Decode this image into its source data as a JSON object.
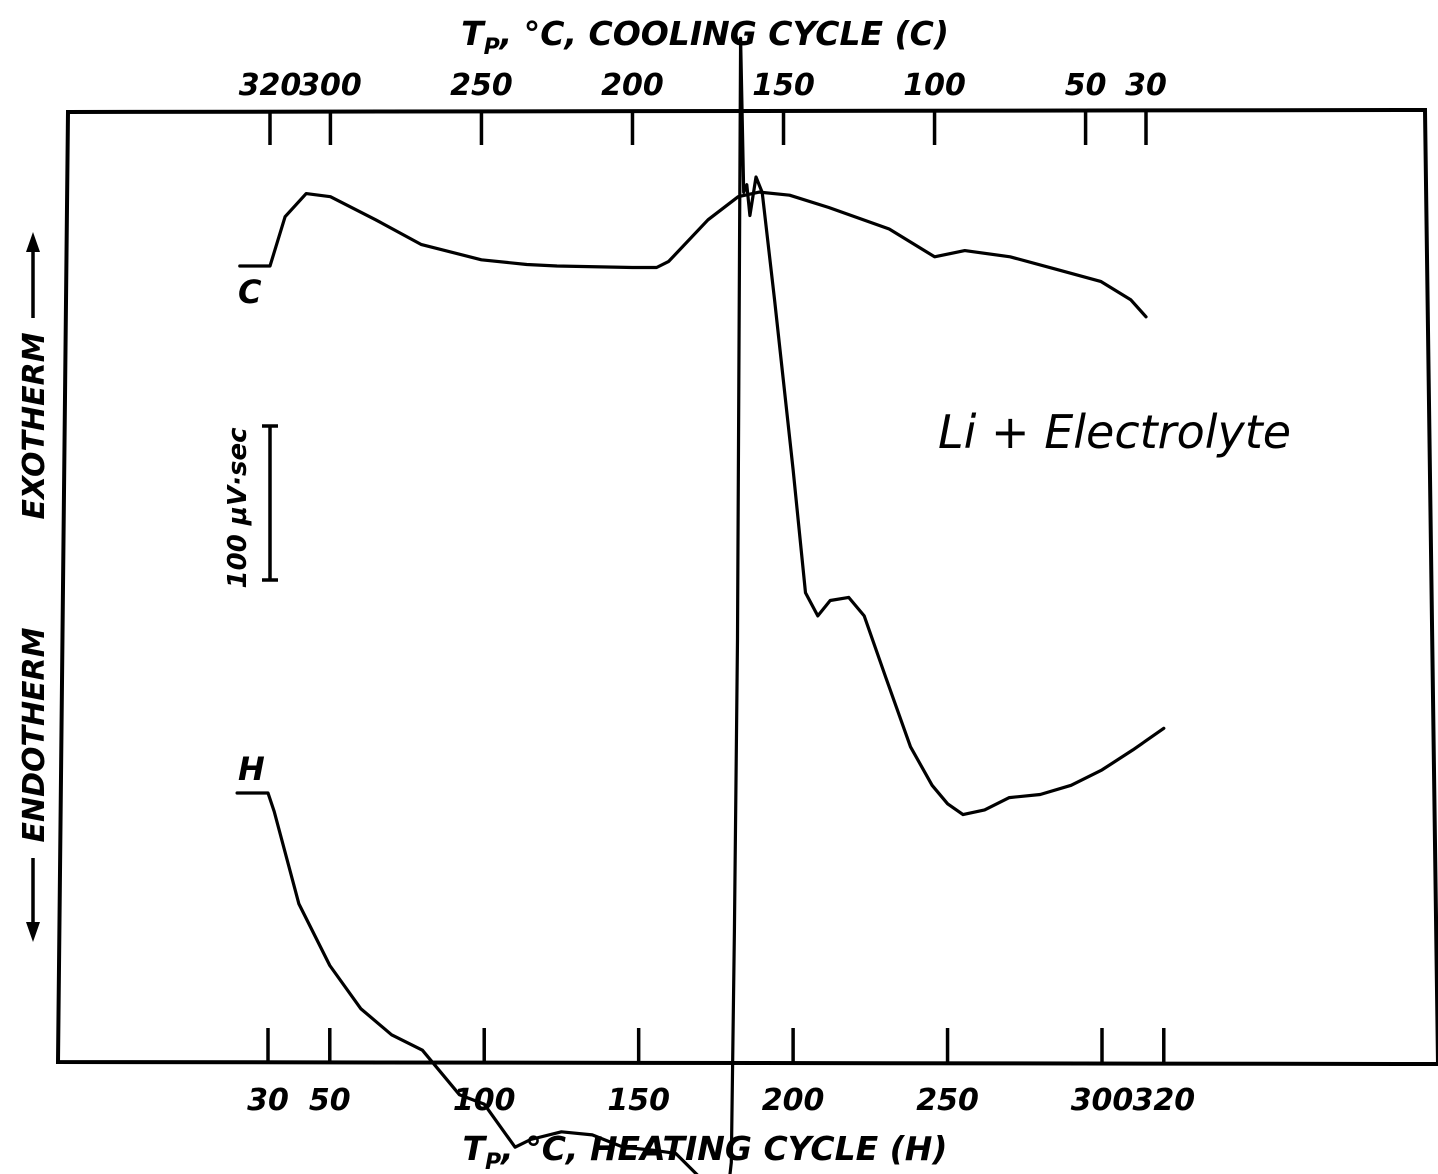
{
  "chart_data": {
    "type": "line",
    "annotation": "Li + Electrolyte",
    "top_axis": {
      "title": "T_P, °C, COOLING CYCLE (C)",
      "title_parts": {
        "prefix": "T",
        "sub": "P",
        "suffix": ", °C, COOLING CYCLE (C)"
      },
      "ticks": [
        320,
        300,
        250,
        200,
        150,
        100,
        50,
        30
      ],
      "range": [
        320,
        30
      ]
    },
    "bottom_axis": {
      "title": "T_P, °C, HEATING CYCLE (H)",
      "title_parts": {
        "prefix": "T",
        "sub": "P",
        "suffix": ", °C, HEATING CYCLE (H)"
      },
      "ticks": [
        30,
        50,
        100,
        150,
        200,
        250,
        300,
        320
      ],
      "range": [
        30,
        320
      ]
    },
    "y_axis": {
      "upper_label": "EXOTHERM",
      "lower_label": "ENDOTHERM",
      "scale_bar_label": "100 µV·sec",
      "scale_bar_value": 100,
      "units": "µV·sec"
    },
    "series": [
      {
        "name": "C",
        "points": [
          [
            330,
            0
          ],
          [
            320,
            0
          ],
          [
            315,
            32
          ],
          [
            308,
            47
          ],
          [
            300,
            45
          ],
          [
            285,
            30
          ],
          [
            270,
            14
          ],
          [
            250,
            4
          ],
          [
            235,
            1
          ],
          [
            225,
            0
          ],
          [
            200,
            -1
          ],
          [
            192,
            -1
          ],
          [
            188,
            3
          ],
          [
            175,
            30
          ],
          [
            165,
            45
          ],
          [
            158,
            48
          ],
          [
            148,
            46
          ],
          [
            135,
            38
          ],
          [
            115,
            24
          ],
          [
            100,
            6
          ],
          [
            90,
            10
          ],
          [
            75,
            6
          ],
          [
            60,
            -2
          ],
          [
            45,
            -10
          ],
          [
            35,
            -22
          ],
          [
            30,
            -33
          ]
        ]
      },
      {
        "name": "H",
        "points": [
          [
            20,
            0
          ],
          [
            30,
            0
          ],
          [
            32,
            -12
          ],
          [
            40,
            -72
          ],
          [
            50,
            -112
          ],
          [
            60,
            -140
          ],
          [
            70,
            -157
          ],
          [
            80,
            -167
          ],
          [
            92,
            -196
          ],
          [
            100,
            -202
          ],
          [
            110,
            -230
          ],
          [
            115,
            -225
          ],
          [
            125,
            -220
          ],
          [
            135,
            -222
          ],
          [
            145,
            -230
          ],
          [
            155,
            -232
          ],
          [
            162,
            -234
          ],
          [
            170,
            -250
          ],
          [
            176,
            -280
          ],
          [
            178,
            -275
          ],
          [
            180,
            -240
          ],
          [
            181,
            -90
          ],
          [
            182,
            100
          ],
          [
            183,
            490
          ],
          [
            184,
            390
          ],
          [
            185,
            395
          ],
          [
            186,
            375
          ],
          [
            188,
            400
          ],
          [
            190,
            390
          ],
          [
            194,
            320
          ],
          [
            200,
            210
          ],
          [
            204,
            130
          ],
          [
            208,
            115
          ],
          [
            212,
            125
          ],
          [
            218,
            127
          ],
          [
            223,
            115
          ],
          [
            230,
            75
          ],
          [
            238,
            30
          ],
          [
            245,
            5
          ],
          [
            250,
            -7
          ],
          [
            255,
            -14
          ],
          [
            262,
            -11
          ],
          [
            270,
            -3
          ],
          [
            280,
            -1
          ],
          [
            290,
            5
          ],
          [
            300,
            15
          ],
          [
            310,
            28
          ],
          [
            320,
            42
          ]
        ]
      }
    ]
  }
}
